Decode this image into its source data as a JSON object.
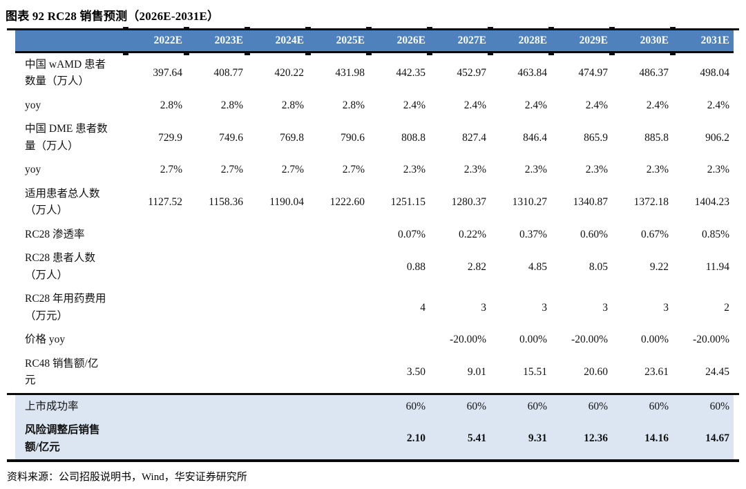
{
  "title": "图表 92 RC28 销售预测（2026E-2031E）",
  "source": "资料来源：公司招股说明书，Wind，华安证券研究所",
  "colors": {
    "header_bg": "#4f81bd",
    "header_text": "#ffffff",
    "highlight_bg": "#dce6f2",
    "rule": "#0a0a0a"
  },
  "chart_data": {
    "type": "table",
    "columns": [
      "",
      "2022E",
      "2023E",
      "2024E",
      "2025E",
      "2026E",
      "2027E",
      "2028E",
      "2029E",
      "2030E",
      "2031E"
    ],
    "rows": [
      {
        "label": "中国 wAMD 患者\n数量（万人）",
        "values": [
          "397.64",
          "408.77",
          "420.22",
          "431.98",
          "442.35",
          "452.97",
          "463.84",
          "474.97",
          "486.37",
          "498.04"
        ]
      },
      {
        "label": "yoy",
        "values": [
          "2.8%",
          "2.8%",
          "2.8%",
          "2.8%",
          "2.4%",
          "2.4%",
          "2.4%",
          "2.4%",
          "2.4%",
          "2.4%"
        ]
      },
      {
        "label": "中国 DME 患者数\n量（万人）",
        "values": [
          "729.9",
          "749.6",
          "769.8",
          "790.6",
          "808.8",
          "827.4",
          "846.4",
          "865.9",
          "885.8",
          "906.2"
        ]
      },
      {
        "label": "yoy",
        "values": [
          "2.7%",
          "2.7%",
          "2.7%",
          "2.7%",
          "2.3%",
          "2.3%",
          "2.3%",
          "2.3%",
          "2.3%",
          "2.3%"
        ]
      },
      {
        "label": "适用患者总人数\n（万人）",
        "values": [
          "1127.52",
          "1158.36",
          "1190.04",
          "1222.60",
          "1251.15",
          "1280.37",
          "1310.27",
          "1340.87",
          "1372.18",
          "1404.23"
        ]
      },
      {
        "label": "RC28 渗透率",
        "values": [
          "",
          "",
          "",
          "",
          "0.07%",
          "0.22%",
          "0.37%",
          "0.60%",
          "0.67%",
          "0.85%"
        ]
      },
      {
        "label": "RC28 患者人数\n（万人）",
        "values": [
          "",
          "",
          "",
          "",
          "0.88",
          "2.82",
          "4.85",
          "8.05",
          "9.22",
          "11.94"
        ]
      },
      {
        "label": "RC28 年用药费用\n（万元）",
        "values": [
          "",
          "",
          "",
          "",
          "4",
          "3",
          "3",
          "3",
          "3",
          "2"
        ]
      },
      {
        "label": "价格 yoy",
        "values": [
          "",
          "",
          "",
          "",
          "",
          "-20.00%",
          "0.00%",
          "-20.00%",
          "0.00%",
          "-20.00%"
        ]
      },
      {
        "label": "RC48 销售额/亿\n元",
        "values": [
          "",
          "",
          "",
          "",
          "3.50",
          "9.01",
          "15.51",
          "20.60",
          "23.61",
          "24.45"
        ]
      },
      {
        "label": "上市成功率",
        "highlight": true,
        "values": [
          "",
          "",
          "",
          "",
          "60%",
          "60%",
          "60%",
          "60%",
          "60%",
          "60%"
        ]
      },
      {
        "label": "风险调整后销售\n额/亿元",
        "highlight": true,
        "bold": true,
        "values": [
          "",
          "",
          "",
          "",
          "2.10",
          "5.41",
          "9.31",
          "12.36",
          "14.16",
          "14.67"
        ]
      }
    ]
  }
}
